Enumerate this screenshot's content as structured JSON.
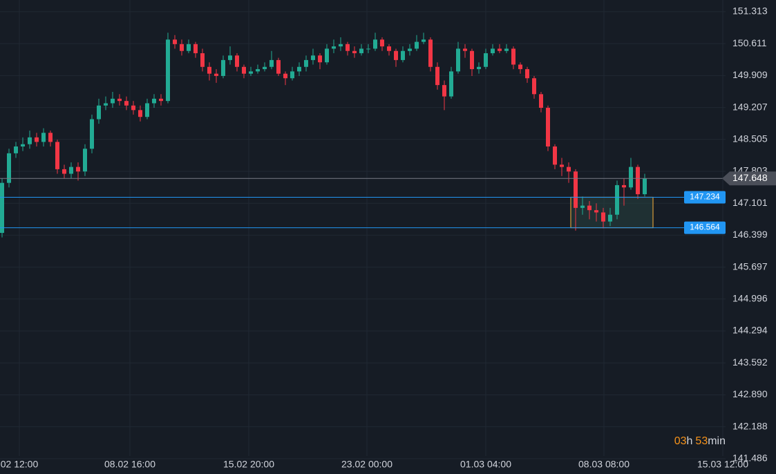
{
  "chart_data": {
    "type": "candlestick",
    "x": [
      0,
      1,
      2,
      3,
      4,
      5,
      6,
      7,
      8,
      9,
      10,
      11,
      12,
      13,
      14,
      15,
      16,
      17,
      18,
      19,
      20,
      21,
      22,
      23,
      24,
      25,
      26,
      27,
      28,
      29,
      30,
      31,
      32,
      33,
      34,
      35,
      36,
      37,
      38,
      39,
      40,
      41,
      42,
      43,
      44,
      45,
      46,
      47,
      48,
      49,
      50,
      51,
      52,
      53,
      54,
      55,
      56,
      57,
      58,
      59,
      60,
      61,
      62,
      63,
      64,
      65,
      66,
      67,
      68,
      69,
      70,
      71,
      72,
      73,
      74,
      75,
      76,
      77,
      78,
      79,
      80,
      81,
      82,
      83,
      84,
      85,
      86,
      87,
      88,
      89,
      90,
      91,
      92,
      93
    ],
    "open": [
      146.45,
      147.55,
      148.2,
      148.35,
      148.4,
      148.55,
      148.45,
      148.65,
      148.45,
      147.85,
      147.75,
      147.9,
      147.8,
      148.3,
      148.95,
      149.25,
      149.3,
      149.4,
      149.35,
      149.25,
      149.15,
      149.0,
      149.3,
      149.4,
      149.35,
      150.7,
      150.6,
      150.45,
      150.6,
      150.4,
      150.1,
      149.95,
      149.9,
      150.25,
      150.35,
      150.1,
      149.95,
      150.0,
      150.05,
      150.1,
      150.25,
      149.95,
      149.85,
      150.0,
      150.1,
      150.25,
      150.35,
      150.2,
      150.5,
      150.55,
      150.6,
      150.45,
      150.4,
      150.5,
      150.5,
      150.7,
      150.55,
      150.45,
      150.25,
      150.45,
      150.5,
      150.65,
      150.7,
      150.1,
      149.7,
      149.45,
      150.0,
      150.5,
      150.45,
      150.05,
      150.1,
      150.4,
      150.5,
      150.45,
      150.5,
      150.15,
      150.05,
      149.85,
      149.5,
      149.2,
      148.35,
      147.95,
      147.9,
      147.8,
      147.0,
      147.05,
      146.95,
      146.9,
      146.7,
      146.85,
      147.5,
      147.45,
      147.9,
      147.3
    ],
    "high": [
      147.65,
      148.3,
      148.45,
      148.55,
      148.7,
      148.65,
      148.75,
      148.7,
      148.5,
      147.95,
      148.0,
      148.0,
      148.4,
      149.05,
      149.4,
      149.45,
      149.55,
      149.5,
      149.45,
      149.35,
      149.25,
      149.4,
      149.5,
      149.5,
      150.85,
      150.8,
      150.7,
      150.7,
      150.65,
      150.5,
      150.2,
      150.05,
      150.35,
      150.55,
      150.4,
      150.15,
      150.1,
      150.15,
      150.2,
      150.45,
      150.3,
      150.0,
      150.1,
      150.2,
      150.35,
      150.5,
      150.4,
      150.6,
      150.7,
      150.75,
      150.65,
      150.55,
      150.6,
      150.6,
      150.85,
      150.75,
      150.6,
      150.5,
      150.55,
      150.6,
      150.8,
      150.85,
      150.75,
      150.2,
      149.8,
      150.1,
      150.65,
      150.6,
      150.5,
      150.2,
      150.5,
      150.6,
      150.6,
      150.6,
      150.55,
      150.2,
      150.1,
      149.9,
      149.55,
      149.25,
      148.4,
      148.1,
      148.0,
      147.85,
      147.25,
      147.15,
      147.1,
      147.0,
      147.0,
      147.6,
      147.65,
      148.1,
      147.95,
      147.75
    ],
    "low": [
      146.35,
      147.45,
      148.1,
      148.25,
      148.3,
      148.35,
      148.35,
      148.35,
      147.75,
      147.65,
      147.65,
      147.6,
      147.7,
      148.2,
      148.85,
      149.15,
      149.2,
      149.25,
      149.15,
      149.05,
      148.9,
      148.95,
      149.2,
      149.25,
      149.3,
      150.5,
      150.35,
      150.4,
      150.3,
      150.0,
      149.8,
      149.75,
      149.85,
      150.15,
      150.0,
      149.85,
      149.9,
      149.95,
      150.0,
      150.05,
      149.9,
      149.7,
      149.8,
      149.9,
      150.0,
      150.15,
      150.05,
      150.15,
      150.4,
      150.45,
      150.35,
      150.3,
      150.35,
      150.4,
      150.45,
      150.45,
      150.35,
      150.1,
      150.2,
      150.35,
      150.45,
      150.6,
      150.0,
      149.6,
      149.15,
      149.4,
      149.95,
      150.3,
      149.9,
      149.95,
      150.05,
      150.35,
      150.4,
      150.4,
      150.05,
      149.95,
      149.75,
      149.4,
      149.1,
      148.25,
      147.85,
      147.7,
      147.55,
      146.5,
      146.85,
      146.75,
      146.7,
      146.55,
      146.6,
      146.75,
      147.05,
      147.4,
      147.2,
      147.25
    ],
    "close": [
      147.55,
      148.2,
      148.35,
      148.4,
      148.55,
      148.45,
      148.65,
      148.45,
      147.85,
      147.75,
      147.9,
      147.8,
      148.3,
      148.95,
      149.25,
      149.3,
      149.4,
      149.35,
      149.25,
      149.15,
      149.0,
      149.3,
      149.4,
      149.35,
      150.7,
      150.6,
      150.45,
      150.6,
      150.4,
      150.1,
      149.95,
      149.9,
      150.25,
      150.35,
      150.1,
      149.95,
      150.0,
      150.05,
      150.1,
      150.25,
      149.95,
      149.85,
      150.0,
      150.1,
      150.25,
      150.35,
      150.2,
      150.5,
      150.55,
      150.6,
      150.45,
      150.4,
      150.5,
      150.5,
      150.7,
      150.55,
      150.45,
      150.25,
      150.45,
      150.5,
      150.65,
      150.7,
      150.1,
      149.7,
      149.45,
      150.0,
      150.5,
      150.45,
      150.05,
      150.1,
      150.4,
      150.5,
      150.45,
      150.5,
      150.15,
      150.05,
      149.85,
      149.5,
      149.2,
      148.35,
      147.95,
      147.9,
      147.8,
      147.0,
      147.05,
      146.95,
      146.9,
      146.7,
      146.85,
      147.5,
      147.45,
      147.9,
      147.3,
      147.65
    ],
    "colors": {
      "up": "#22ab94",
      "down": "#f23645"
    },
    "xlim": [
      -0.3,
      104.7
    ],
    "xticks": [
      {
        "value": 2.5,
        "label": "02 12:00"
      },
      {
        "value": 18.5,
        "label": "08.02 16:00"
      },
      {
        "value": 35.7,
        "label": "15.02 20:00"
      },
      {
        "value": 52.8,
        "label": "23.02 00:00"
      },
      {
        "value": 70,
        "label": "01.03 04:00"
      },
      {
        "value": 87.1,
        "label": "08.03 08:00"
      },
      {
        "value": 104.3,
        "label": "15.03 12:00"
      }
    ],
    "ylim": [
      141.15,
      151.57
    ],
    "yticks": [
      151.313,
      150.611,
      149.909,
      149.207,
      148.505,
      147.803,
      147.101,
      146.399,
      145.697,
      144.996,
      144.294,
      143.592,
      {
        "value": 142.89,
        "label": "142.890"
      },
      142.188,
      141.486
    ],
    "grid": true,
    "current_price": {
      "value": 147.648,
      "color": "#787b86"
    },
    "levels": [
      {
        "value": 147.234,
        "color": "#2196f3"
      },
      {
        "value": 146.564,
        "color": "#2196f3"
      }
    ],
    "zone": {
      "x0": 82.3,
      "x1": 94.2,
      "color": "#d99a3a"
    },
    "countdown": {
      "hours": "03",
      "hours_unit": "h",
      "minutes": "53",
      "minutes_unit": "min"
    }
  }
}
